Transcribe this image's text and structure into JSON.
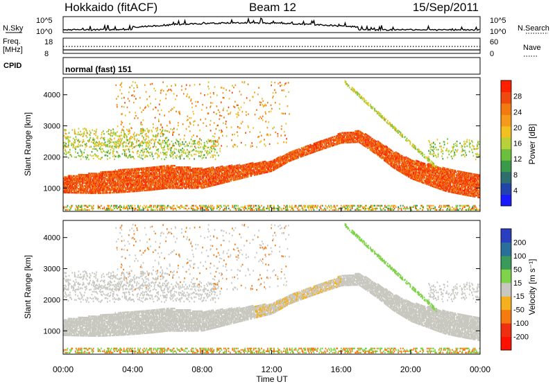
{
  "header": {
    "title_left": "Hokkaido (fitACF)",
    "title_center": "Beam 12",
    "title_right": "15/Sep/2011"
  },
  "top_panels": {
    "nsky_label": "N.Sky",
    "nsky_ticks": [
      "10^5",
      "10^0"
    ],
    "nsearch_label": "N.Search",
    "nsearch_ticks": [
      "10^5",
      "10^0"
    ],
    "freq_label": "Freq.",
    "freq_unit": "[MHz]",
    "freq_ticks": [
      "18",
      "8"
    ],
    "nave_label": "Nave",
    "nave_ticks": [
      "60",
      "0"
    ],
    "cpid_label": "CPID",
    "cpid_value": "normal (fast) 151"
  },
  "chart_data": [
    {
      "type": "heatmap",
      "panel": "power",
      "ylabel": "Slant Range [km]",
      "yticks": [
        "1000",
        "2000",
        "3000",
        "4000"
      ],
      "ylim": [
        250,
        4550
      ],
      "xlim_hours": [
        0,
        24
      ],
      "colorbar_label": "Power [dB]",
      "colorbar_ticks": [
        "28",
        "24",
        "20",
        "16",
        "12",
        "8",
        "4"
      ],
      "colorbar_range": [
        0,
        32
      ],
      "colors": [
        "#1a1aff",
        "#2244aa",
        "#2e6e6e",
        "#3a9a4a",
        "#6cbf3c",
        "#b8d03a",
        "#f2c020",
        "#f59a1a",
        "#f27a10",
        "#ee4a10",
        "#ff2000"
      ],
      "main_echo_band_km": [
        [
          0,
          1100
        ],
        [
          2,
          1150
        ],
        [
          4,
          1250
        ],
        [
          6,
          1350
        ],
        [
          8,
          1300
        ],
        [
          10,
          1500
        ],
        [
          12,
          1700
        ],
        [
          13,
          2000
        ],
        [
          14,
          2200
        ],
        [
          15,
          2400
        ],
        [
          16,
          2600
        ],
        [
          17,
          2650
        ],
        [
          18,
          2300
        ],
        [
          19,
          1900
        ],
        [
          20,
          1600
        ],
        [
          22,
          1250
        ],
        [
          24,
          1050
        ]
      ]
    },
    {
      "type": "heatmap",
      "panel": "velocity",
      "ylabel": "Slant Range [km]",
      "yticks": [
        "1000",
        "2000",
        "3000",
        "4000"
      ],
      "ylim": [
        250,
        4550
      ],
      "xlim_hours": [
        0,
        24
      ],
      "colorbar_label": "Velocity [m s⁻¹]",
      "colorbar_ticks": [
        "200",
        "100",
        "50",
        "15",
        "-15",
        "-50",
        "-100",
        "-200"
      ],
      "colors": [
        "#2a3fc0",
        "#2a6e9a",
        "#3a9a5a",
        "#7fd34a",
        "#c8c8c0",
        "#f5b020",
        "#f57a10",
        "#ee3010",
        "#ff1000"
      ]
    }
  ],
  "xaxis": {
    "ticks": [
      "00:00",
      "04:00",
      "08:00",
      "12:00",
      "16:00",
      "20:00",
      "00:00"
    ],
    "label": "Time UT"
  }
}
